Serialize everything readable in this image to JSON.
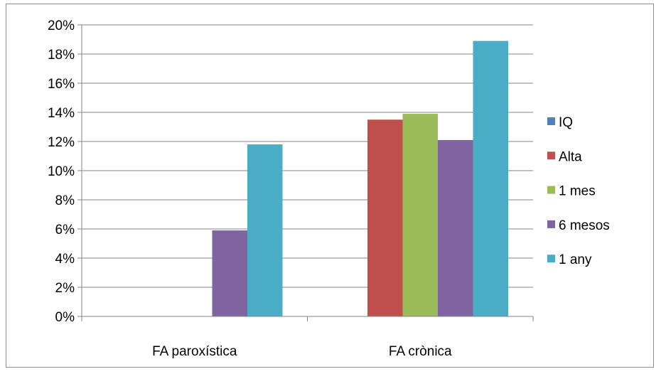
{
  "chart_data": {
    "type": "bar",
    "title": "",
    "xlabel": "",
    "ylabel": "",
    "categories": [
      "FA paroxística",
      "FA crònica"
    ],
    "ylim": [
      0,
      0.2
    ],
    "y_ticks": [
      "0%",
      "2%",
      "4%",
      "6%",
      "8%",
      "10%",
      "12%",
      "14%",
      "16%",
      "18%",
      "20%"
    ],
    "grid": true,
    "legend_position": "right",
    "series": [
      {
        "name": "IQ",
        "color": "#4f81bd",
        "values": [
          0,
          0
        ]
      },
      {
        "name": "Alta",
        "color": "#c0504d",
        "values": [
          0,
          0.135
        ]
      },
      {
        "name": "1 mes",
        "color": "#9bbb59",
        "values": [
          0,
          0.139
        ]
      },
      {
        "name": "6 mesos",
        "color": "#8064a2",
        "values": [
          0.059,
          0.121
        ]
      },
      {
        "name": "1 any",
        "color": "#4bacc6",
        "values": [
          0.118,
          0.189
        ]
      }
    ]
  }
}
